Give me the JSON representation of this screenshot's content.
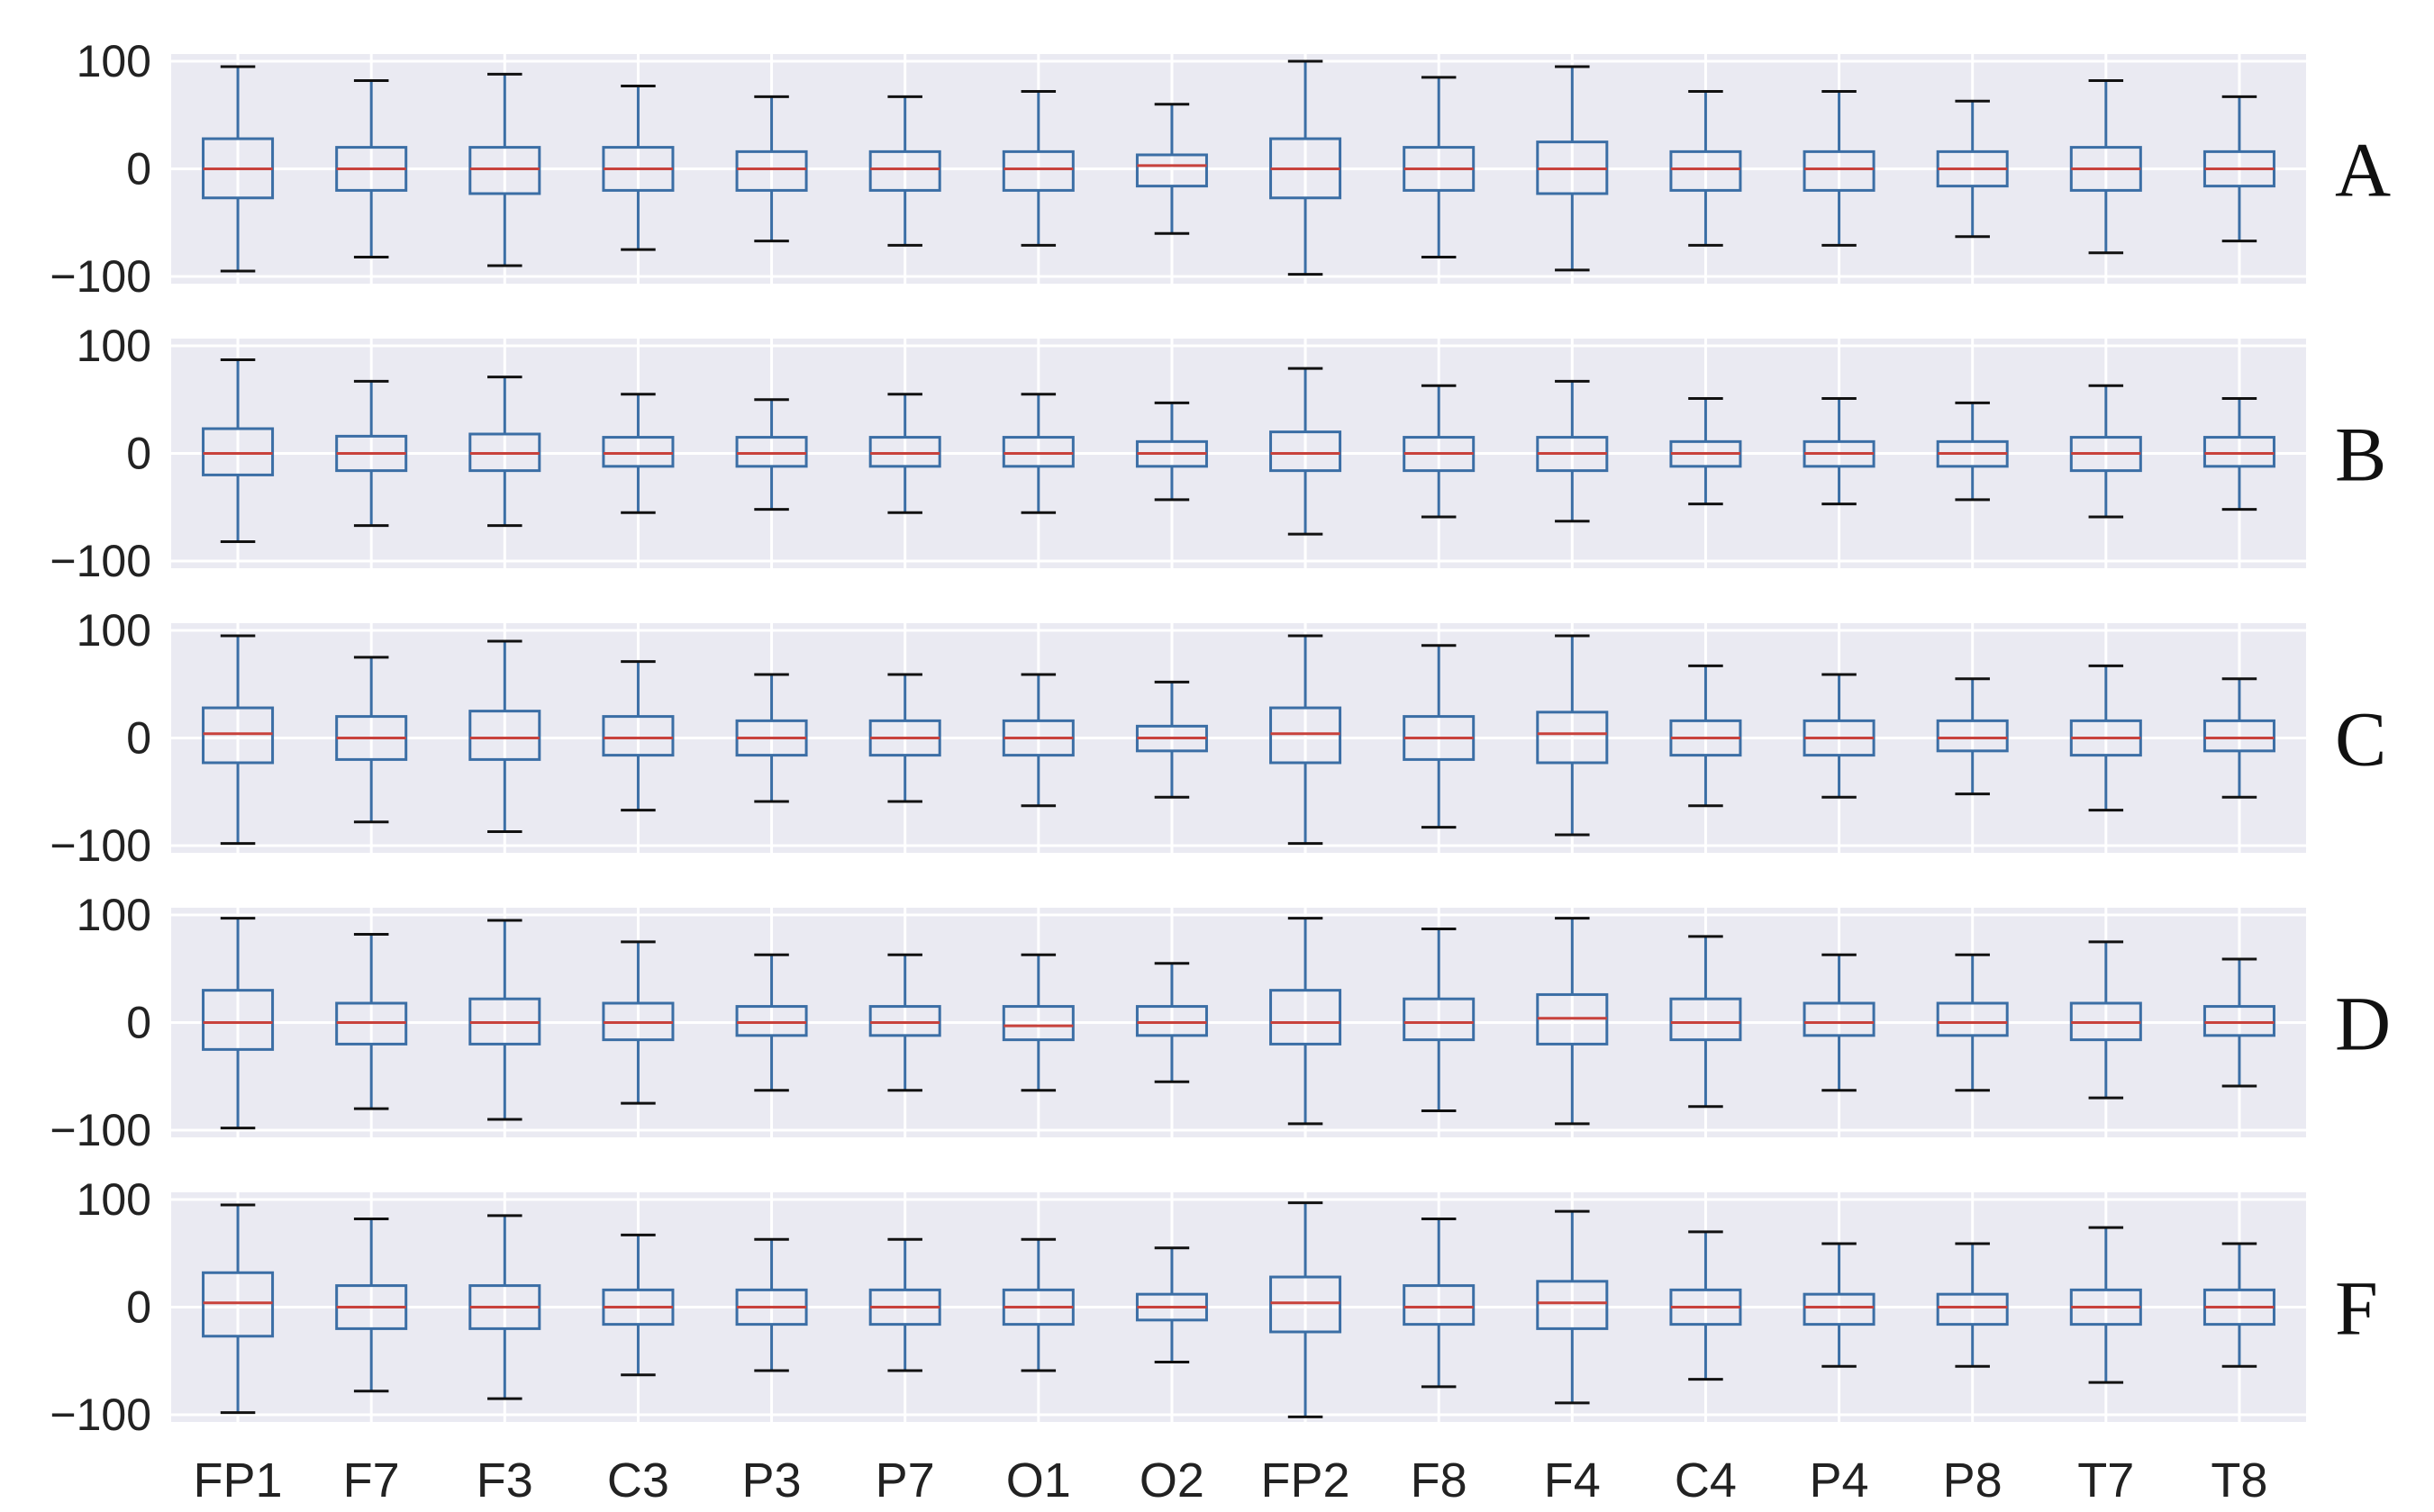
{
  "chart_data": {
    "type": "box",
    "categories": [
      "FP1",
      "F7",
      "F3",
      "C3",
      "P3",
      "P7",
      "O1",
      "O2",
      "FP2",
      "F8",
      "F4",
      "C4",
      "P4",
      "P8",
      "T7",
      "T8"
    ],
    "ylim": [
      -100,
      100
    ],
    "yticks": [
      100,
      0,
      -100
    ],
    "ytick_labels": [
      "100",
      "0",
      "−100"
    ],
    "grid": true,
    "colors": {
      "panel_bg": "#eaeaf2",
      "grid": "#ffffff",
      "box": "#3b6ea5",
      "median": "#c8423c"
    },
    "panels": [
      {
        "label": "A",
        "boxes": [
          {
            "whislo": -95,
            "q1": -27,
            "med": 0,
            "q3": 28,
            "whishi": 95
          },
          {
            "whislo": -82,
            "q1": -20,
            "med": 0,
            "q3": 20,
            "whishi": 82
          },
          {
            "whislo": -90,
            "q1": -23,
            "med": 0,
            "q3": 20,
            "whishi": 88
          },
          {
            "whislo": -75,
            "q1": -20,
            "med": 0,
            "q3": 20,
            "whishi": 77
          },
          {
            "whislo": -67,
            "q1": -20,
            "med": 0,
            "q3": 16,
            "whishi": 67
          },
          {
            "whislo": -71,
            "q1": -20,
            "med": 0,
            "q3": 16,
            "whishi": 67
          },
          {
            "whislo": -71,
            "q1": -20,
            "med": 0,
            "q3": 16,
            "whishi": 72
          },
          {
            "whislo": -60,
            "q1": -16,
            "med": 3,
            "q3": 13,
            "whishi": 60
          },
          {
            "whislo": -98,
            "q1": -27,
            "med": 0,
            "q3": 28,
            "whishi": 100
          },
          {
            "whislo": -82,
            "q1": -20,
            "med": 0,
            "q3": 20,
            "whishi": 85
          },
          {
            "whislo": -94,
            "q1": -23,
            "med": 0,
            "q3": 25,
            "whishi": 95
          },
          {
            "whislo": -71,
            "q1": -20,
            "med": 0,
            "q3": 16,
            "whishi": 72
          },
          {
            "whislo": -71,
            "q1": -20,
            "med": 0,
            "q3": 16,
            "whishi": 72
          },
          {
            "whislo": -63,
            "q1": -16,
            "med": 0,
            "q3": 16,
            "whishi": 63
          },
          {
            "whislo": -78,
            "q1": -20,
            "med": 0,
            "q3": 20,
            "whishi": 82
          },
          {
            "whislo": -67,
            "q1": -16,
            "med": 0,
            "q3": 16,
            "whishi": 67
          }
        ]
      },
      {
        "label": "B",
        "boxes": [
          {
            "whislo": -82,
            "q1": -20,
            "med": 0,
            "q3": 23,
            "whishi": 87
          },
          {
            "whislo": -67,
            "q1": -16,
            "med": 0,
            "q3": 16,
            "whishi": 67
          },
          {
            "whislo": -67,
            "q1": -16,
            "med": 0,
            "q3": 18,
            "whishi": 71
          },
          {
            "whislo": -55,
            "q1": -12,
            "med": 0,
            "q3": 15,
            "whishi": 55
          },
          {
            "whislo": -52,
            "q1": -12,
            "med": 0,
            "q3": 15,
            "whishi": 50
          },
          {
            "whislo": -55,
            "q1": -12,
            "med": 0,
            "q3": 15,
            "whishi": 55
          },
          {
            "whislo": -55,
            "q1": -12,
            "med": 0,
            "q3": 15,
            "whishi": 55
          },
          {
            "whislo": -43,
            "q1": -12,
            "med": 0,
            "q3": 11,
            "whishi": 47
          },
          {
            "whislo": -75,
            "q1": -16,
            "med": 0,
            "q3": 20,
            "whishi": 79
          },
          {
            "whislo": -59,
            "q1": -16,
            "med": 0,
            "q3": 15,
            "whishi": 63
          },
          {
            "whislo": -63,
            "q1": -16,
            "med": 0,
            "q3": 15,
            "whishi": 67
          },
          {
            "whislo": -47,
            "q1": -12,
            "med": 0,
            "q3": 11,
            "whishi": 51
          },
          {
            "whislo": -47,
            "q1": -12,
            "med": 0,
            "q3": 11,
            "whishi": 51
          },
          {
            "whislo": -43,
            "q1": -12,
            "med": 0,
            "q3": 11,
            "whishi": 47
          },
          {
            "whislo": -59,
            "q1": -16,
            "med": 0,
            "q3": 15,
            "whishi": 63
          },
          {
            "whislo": -52,
            "q1": -12,
            "med": 0,
            "q3": 15,
            "whishi": 51
          }
        ]
      },
      {
        "label": "C",
        "boxes": [
          {
            "whislo": -98,
            "q1": -23,
            "med": 4,
            "q3": 28,
            "whishi": 95
          },
          {
            "whislo": -78,
            "q1": -20,
            "med": 0,
            "q3": 20,
            "whishi": 75
          },
          {
            "whislo": -87,
            "q1": -20,
            "med": 0,
            "q3": 25,
            "whishi": 90
          },
          {
            "whislo": -67,
            "q1": -16,
            "med": 0,
            "q3": 20,
            "whishi": 71
          },
          {
            "whislo": -59,
            "q1": -16,
            "med": 0,
            "q3": 16,
            "whishi": 59
          },
          {
            "whislo": -59,
            "q1": -16,
            "med": 0,
            "q3": 16,
            "whishi": 59
          },
          {
            "whislo": -63,
            "q1": -16,
            "med": 0,
            "q3": 16,
            "whishi": 59
          },
          {
            "whislo": -55,
            "q1": -12,
            "med": 0,
            "q3": 11,
            "whishi": 52
          },
          {
            "whislo": -98,
            "q1": -23,
            "med": 4,
            "q3": 28,
            "whishi": 95
          },
          {
            "whislo": -83,
            "q1": -20,
            "med": 0,
            "q3": 20,
            "whishi": 86
          },
          {
            "whislo": -90,
            "q1": -23,
            "med": 4,
            "q3": 24,
            "whishi": 95
          },
          {
            "whislo": -63,
            "q1": -16,
            "med": 0,
            "q3": 16,
            "whishi": 67
          },
          {
            "whislo": -55,
            "q1": -16,
            "med": 0,
            "q3": 16,
            "whishi": 59
          },
          {
            "whislo": -52,
            "q1": -12,
            "med": 0,
            "q3": 16,
            "whishi": 55
          },
          {
            "whislo": -67,
            "q1": -16,
            "med": 0,
            "q3": 16,
            "whishi": 67
          },
          {
            "whislo": -55,
            "q1": -12,
            "med": 0,
            "q3": 16,
            "whishi": 55
          }
        ]
      },
      {
        "label": "D",
        "boxes": [
          {
            "whislo": -98,
            "q1": -25,
            "med": 0,
            "q3": 30,
            "whishi": 97
          },
          {
            "whislo": -80,
            "q1": -20,
            "med": 0,
            "q3": 18,
            "whishi": 82
          },
          {
            "whislo": -90,
            "q1": -20,
            "med": 0,
            "q3": 22,
            "whishi": 95
          },
          {
            "whislo": -75,
            "q1": -16,
            "med": 0,
            "q3": 18,
            "whishi": 75
          },
          {
            "whislo": -63,
            "q1": -12,
            "med": 0,
            "q3": 15,
            "whishi": 63
          },
          {
            "whislo": -63,
            "q1": -12,
            "med": 0,
            "q3": 15,
            "whishi": 63
          },
          {
            "whislo": -63,
            "q1": -16,
            "med": -3,
            "q3": 15,
            "whishi": 63
          },
          {
            "whislo": -55,
            "q1": -12,
            "med": 0,
            "q3": 15,
            "whishi": 55
          },
          {
            "whislo": -94,
            "q1": -20,
            "med": 0,
            "q3": 30,
            "whishi": 97
          },
          {
            "whislo": -82,
            "q1": -16,
            "med": 0,
            "q3": 22,
            "whishi": 87
          },
          {
            "whislo": -94,
            "q1": -20,
            "med": 4,
            "q3": 26,
            "whishi": 97
          },
          {
            "whislo": -78,
            "q1": -16,
            "med": 0,
            "q3": 22,
            "whishi": 80
          },
          {
            "whislo": -63,
            "q1": -12,
            "med": 0,
            "q3": 18,
            "whishi": 63
          },
          {
            "whislo": -63,
            "q1": -12,
            "med": 0,
            "q3": 18,
            "whishi": 63
          },
          {
            "whislo": -70,
            "q1": -16,
            "med": 0,
            "q3": 18,
            "whishi": 75
          },
          {
            "whislo": -59,
            "q1": -12,
            "med": 0,
            "q3": 15,
            "whishi": 59
          }
        ]
      },
      {
        "label": "F",
        "boxes": [
          {
            "whislo": -98,
            "q1": -27,
            "med": 4,
            "q3": 32,
            "whishi": 95
          },
          {
            "whislo": -78,
            "q1": -20,
            "med": 0,
            "q3": 20,
            "whishi": 82
          },
          {
            "whislo": -85,
            "q1": -20,
            "med": 0,
            "q3": 20,
            "whishi": 85
          },
          {
            "whislo": -63,
            "q1": -16,
            "med": 0,
            "q3": 16,
            "whishi": 67
          },
          {
            "whislo": -59,
            "q1": -16,
            "med": 0,
            "q3": 16,
            "whishi": 63
          },
          {
            "whislo": -59,
            "q1": -16,
            "med": 0,
            "q3": 16,
            "whishi": 63
          },
          {
            "whislo": -59,
            "q1": -16,
            "med": 0,
            "q3": 16,
            "whishi": 63
          },
          {
            "whislo": -51,
            "q1": -12,
            "med": 0,
            "q3": 12,
            "whishi": 55
          },
          {
            "whislo": -102,
            "q1": -23,
            "med": 4,
            "q3": 28,
            "whishi": 97
          },
          {
            "whislo": -74,
            "q1": -16,
            "med": 0,
            "q3": 20,
            "whishi": 82
          },
          {
            "whislo": -89,
            "q1": -20,
            "med": 4,
            "q3": 24,
            "whishi": 89
          },
          {
            "whislo": -67,
            "q1": -16,
            "med": 0,
            "q3": 16,
            "whishi": 70
          },
          {
            "whislo": -55,
            "q1": -16,
            "med": 0,
            "q3": 12,
            "whishi": 59
          },
          {
            "whislo": -55,
            "q1": -16,
            "med": 0,
            "q3": 12,
            "whishi": 59
          },
          {
            "whislo": -70,
            "q1": -16,
            "med": 0,
            "q3": 16,
            "whishi": 74
          },
          {
            "whislo": -55,
            "q1": -16,
            "med": 0,
            "q3": 16,
            "whishi": 59
          }
        ]
      }
    ]
  }
}
